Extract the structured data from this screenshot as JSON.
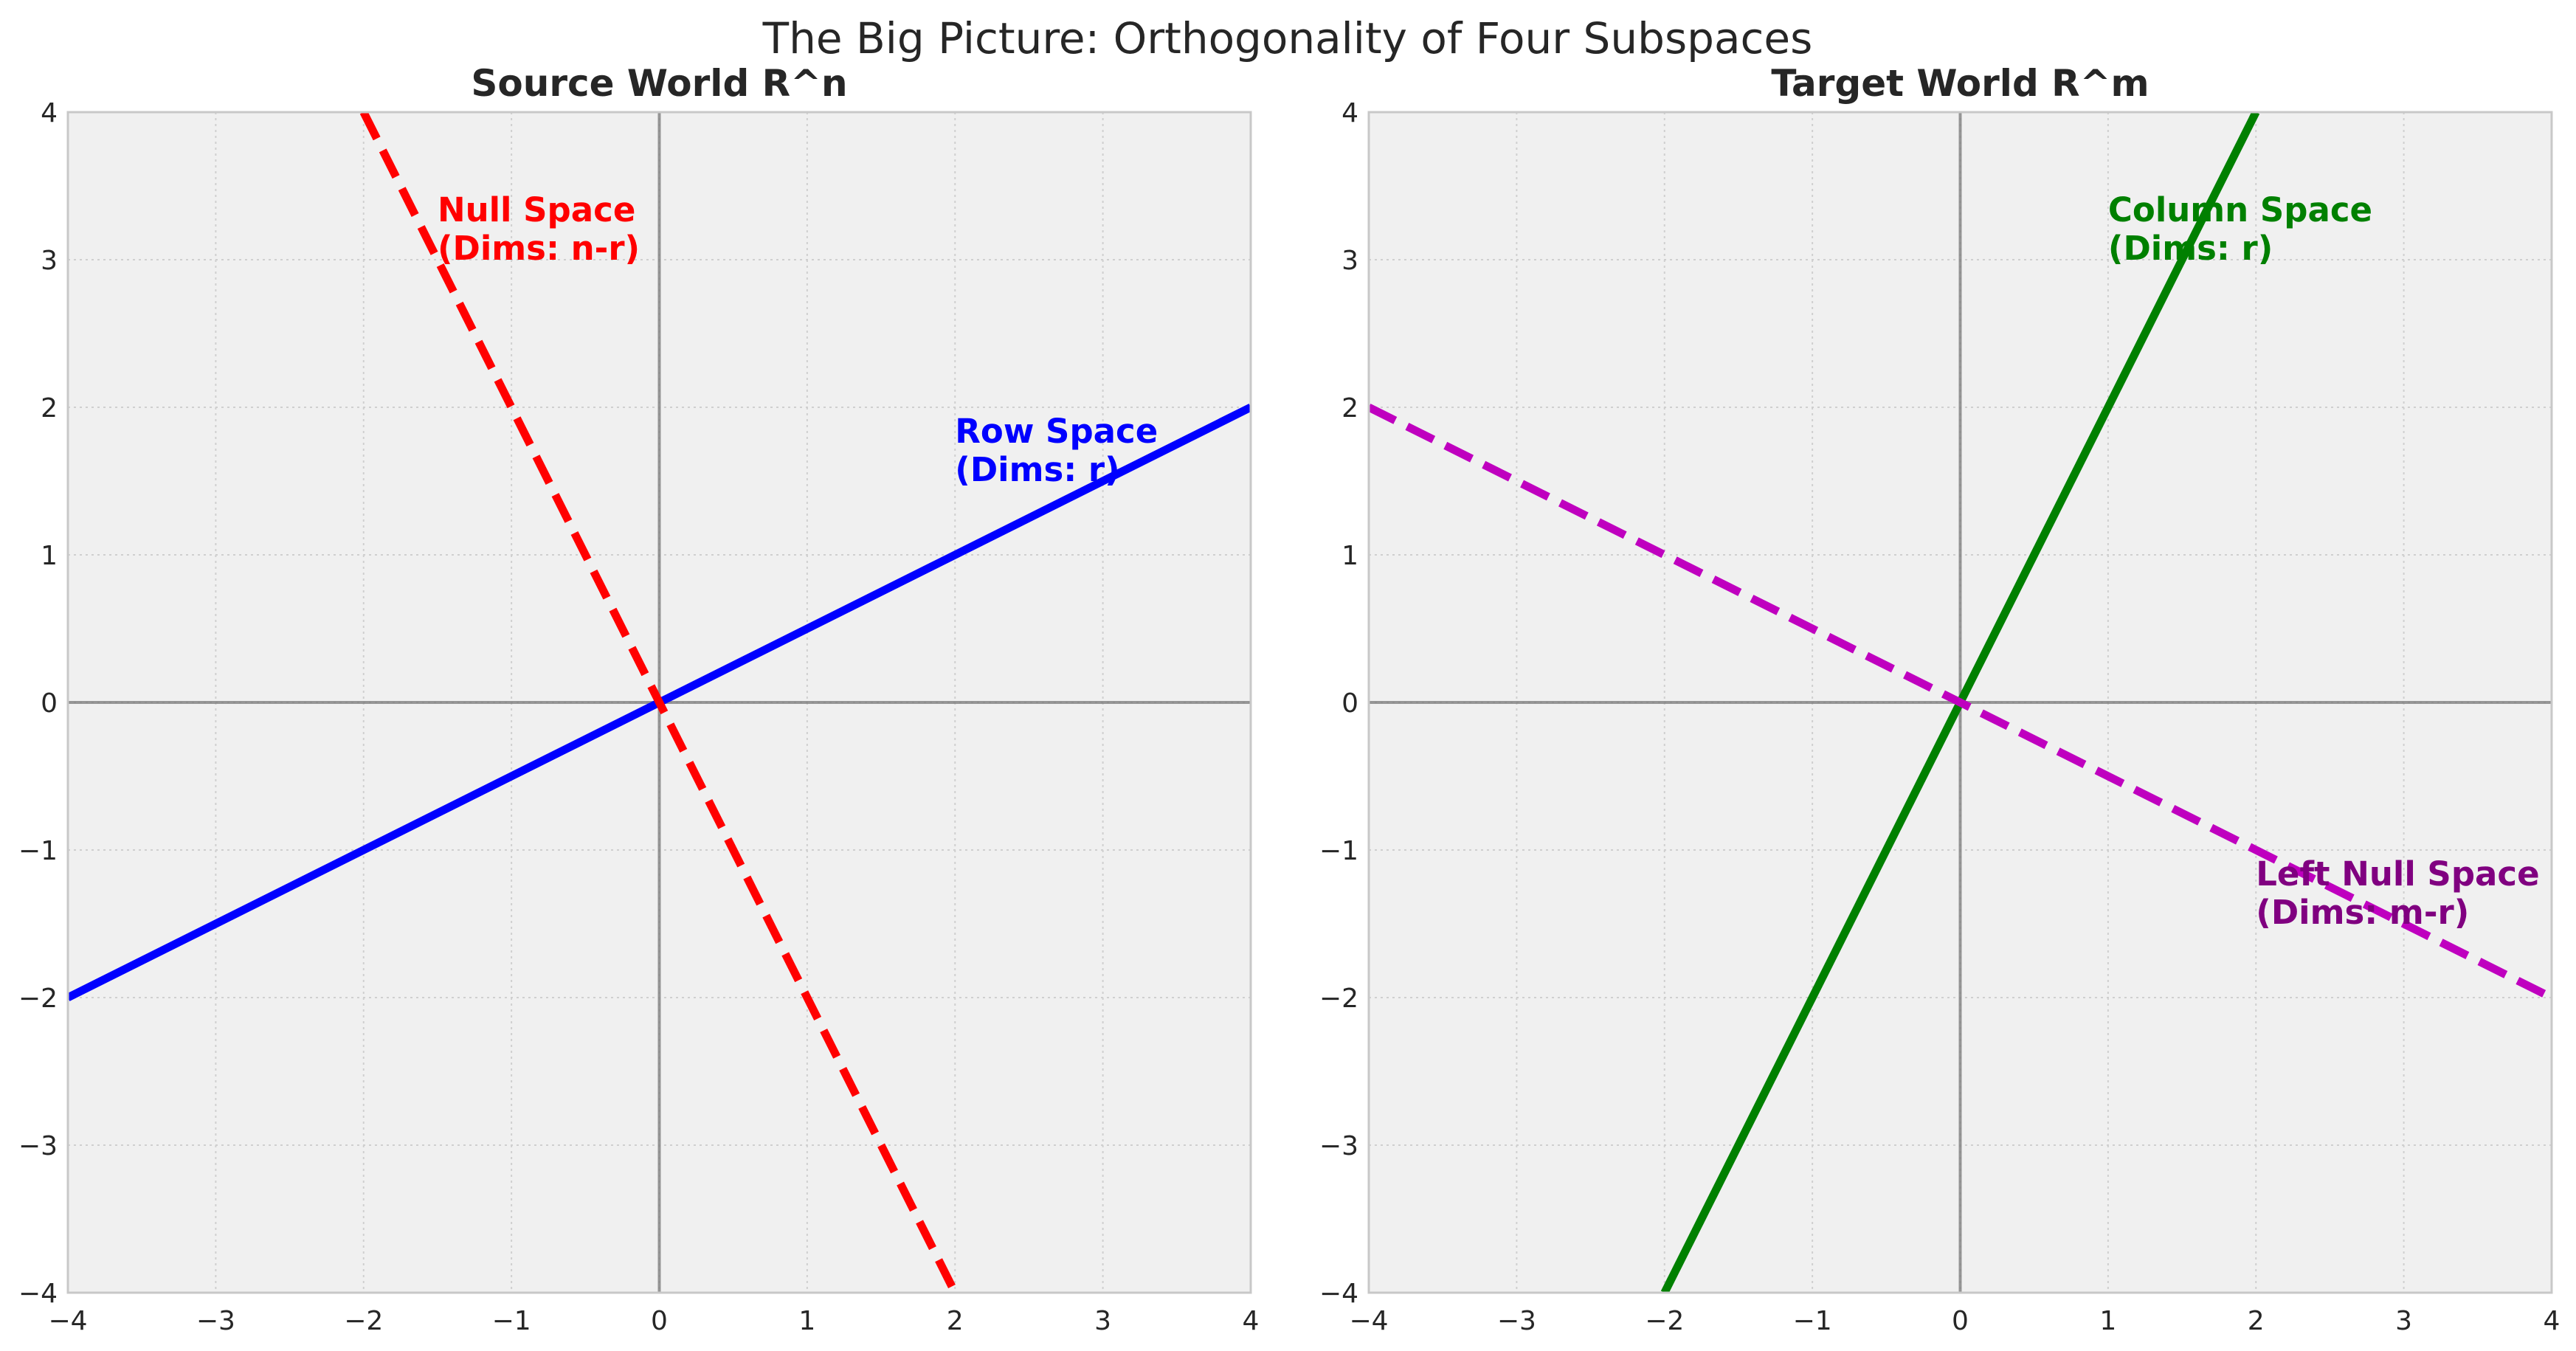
{
  "figure": {
    "title": "The Big Picture: Orthogonality of Four Subspaces"
  },
  "chart_data": [
    {
      "type": "line",
      "title": "Source World R^n",
      "xlabel": "",
      "ylabel": "",
      "xlim": [
        -4,
        4
      ],
      "ylim": [
        -4,
        4
      ],
      "xticks": [
        -4,
        -3,
        -2,
        -1,
        0,
        1,
        2,
        3,
        4
      ],
      "yticks": [
        -4,
        -3,
        -2,
        -1,
        0,
        1,
        2,
        3,
        4
      ],
      "xtick_labels": [
        "−4",
        "−3",
        "−2",
        "−1",
        "0",
        "1",
        "2",
        "3",
        "4"
      ],
      "ytick_labels": [
        "−4",
        "−3",
        "−2",
        "−1",
        "0",
        "1",
        "2",
        "3",
        "4"
      ],
      "grid": true,
      "legend": "none",
      "series": [
        {
          "x": [
            -4,
            4
          ],
          "y": [
            -2,
            2
          ],
          "color": "#0000ff",
          "style": "solid"
        },
        {
          "x": [
            -2,
            2
          ],
          "y": [
            4,
            -4
          ],
          "color": "#ff0000",
          "style": "dashed"
        }
      ],
      "annotations": [
        {
          "text": [
            "Row Space",
            "(Dims: r)"
          ],
          "x": 2,
          "y": 1.5,
          "color": "#0000ff"
        },
        {
          "text": [
            "Null Space",
            "(Dims: n-r)"
          ],
          "x": -1.5,
          "y": 3,
          "color": "#ff0000"
        }
      ]
    },
    {
      "type": "line",
      "title": "Target World R^m",
      "xlabel": "",
      "ylabel": "",
      "xlim": [
        -4,
        4
      ],
      "ylim": [
        -4,
        4
      ],
      "xticks": [
        -4,
        -3,
        -2,
        -1,
        0,
        1,
        2,
        3,
        4
      ],
      "yticks": [
        -4,
        -3,
        -2,
        -1,
        0,
        1,
        2,
        3,
        4
      ],
      "xtick_labels": [
        "−4",
        "−3",
        "−2",
        "−1",
        "0",
        "1",
        "2",
        "3",
        "4"
      ],
      "ytick_labels": [
        "−4",
        "−3",
        "−2",
        "−1",
        "0",
        "1",
        "2",
        "3",
        "4"
      ],
      "grid": true,
      "legend": "none",
      "series": [
        {
          "x": [
            -2,
            2
          ],
          "y": [
            -4,
            4
          ],
          "color": "#008000",
          "style": "solid"
        },
        {
          "x": [
            -4,
            4
          ],
          "y": [
            2,
            -2
          ],
          "color": "#bf00bf",
          "style": "dashed"
        }
      ],
      "annotations": [
        {
          "text": [
            "Column Space",
            "(Dims: r)"
          ],
          "x": 1,
          "y": 3,
          "color": "#008000"
        },
        {
          "text": [
            "Left Null Space",
            "(Dims: m-r)"
          ],
          "x": 2,
          "y": -1.5,
          "color": "#800080"
        }
      ]
    }
  ]
}
